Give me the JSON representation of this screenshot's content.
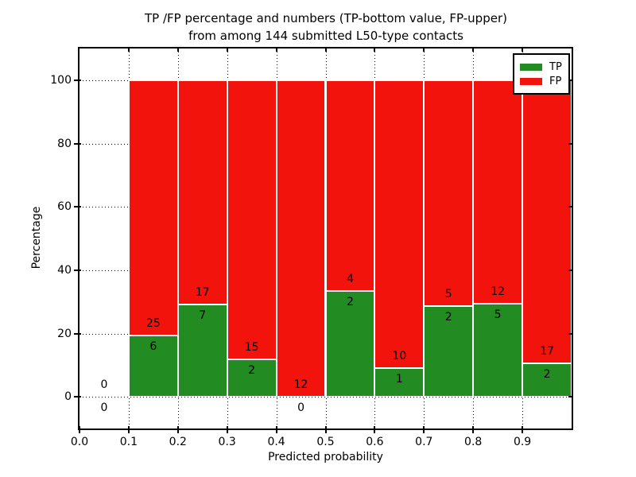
{
  "title": {
    "line1": "TP /FP percentage and numbers (TP-bottom value, FP-upper)",
    "line2": "from among 144 submitted L50-type contacts"
  },
  "axes": {
    "x_label": "Predicted probability",
    "y_label": "Percentage",
    "x_ticks": [
      {
        "value": 0.0,
        "label": "0.0"
      },
      {
        "value": 0.1,
        "label": "0.1"
      },
      {
        "value": 0.2,
        "label": "0.2"
      },
      {
        "value": 0.3,
        "label": "0.3"
      },
      {
        "value": 0.4,
        "label": "0.4"
      },
      {
        "value": 0.5,
        "label": "0.5"
      },
      {
        "value": 0.6,
        "label": "0.6"
      },
      {
        "value": 0.7,
        "label": "0.7"
      },
      {
        "value": 0.8,
        "label": "0.8"
      },
      {
        "value": 0.9,
        "label": "0.9"
      }
    ],
    "y_ticks": [
      {
        "value": 0,
        "label": "0"
      },
      {
        "value": 20,
        "label": "20"
      },
      {
        "value": 40,
        "label": "40"
      },
      {
        "value": 60,
        "label": "60"
      },
      {
        "value": 80,
        "label": "80"
      },
      {
        "value": 100,
        "label": "100"
      }
    ]
  },
  "legend": {
    "items": [
      {
        "label": "TP",
        "color": "#228B22"
      },
      {
        "label": "FP",
        "color": "#F2130D"
      }
    ]
  },
  "colors": {
    "tp": "#228B22",
    "fp": "#F2130D",
    "grid": "#000000",
    "frame": "#000000",
    "background": "#FFFFFF"
  },
  "chart_data": {
    "type": "bar",
    "stacked": true,
    "normalized_to_percent": true,
    "title": "TP /FP percentage and numbers (TP-bottom value, FP-upper) from among 144 submitted L50-type contacts",
    "xlabel": "Predicted probability",
    "ylabel": "Percentage",
    "xlim": [
      0.0,
      1.0
    ],
    "ylim": [
      -10,
      110
    ],
    "grid": true,
    "legend_position": "upper right",
    "total_contacts": 144,
    "bin_width": 0.1,
    "bins": [
      {
        "range": [
          0.0,
          0.1
        ],
        "tp": 0,
        "fp": 0,
        "tp_percent": 0.0
      },
      {
        "range": [
          0.1,
          0.2
        ],
        "tp": 6,
        "fp": 25,
        "tp_percent": 19.35
      },
      {
        "range": [
          0.2,
          0.3
        ],
        "tp": 7,
        "fp": 17,
        "tp_percent": 29.17
      },
      {
        "range": [
          0.3,
          0.4
        ],
        "tp": 2,
        "fp": 15,
        "tp_percent": 11.76
      },
      {
        "range": [
          0.4,
          0.5
        ],
        "tp": 0,
        "fp": 12,
        "tp_percent": 0.0
      },
      {
        "range": [
          0.5,
          0.6
        ],
        "tp": 2,
        "fp": 4,
        "tp_percent": 33.33
      },
      {
        "range": [
          0.6,
          0.7
        ],
        "tp": 1,
        "fp": 10,
        "tp_percent": 9.09
      },
      {
        "range": [
          0.7,
          0.8
        ],
        "tp": 2,
        "fp": 5,
        "tp_percent": 28.57
      },
      {
        "range": [
          0.8,
          0.9
        ],
        "tp": 5,
        "fp": 12,
        "tp_percent": 29.41
      },
      {
        "range": [
          0.9,
          1.0
        ],
        "tp": 2,
        "fp": 17,
        "tp_percent": 10.53
      }
    ],
    "series": [
      {
        "name": "TP",
        "counts": [
          0,
          6,
          7,
          2,
          0,
          2,
          1,
          2,
          5,
          2
        ]
      },
      {
        "name": "FP",
        "counts": [
          0,
          25,
          17,
          15,
          12,
          4,
          10,
          5,
          12,
          17
        ]
      }
    ]
  }
}
